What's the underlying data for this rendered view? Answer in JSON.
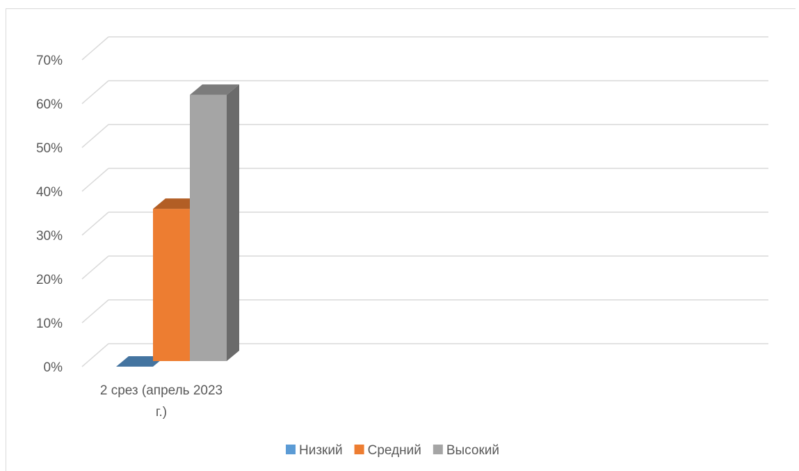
{
  "chart_data": {
    "type": "bar",
    "categories": [
      "2 срез (апрель 2023 г.)"
    ],
    "series": [
      {
        "name": "Низкий",
        "values": [
          0
        ],
        "color": "#5B9BD5"
      },
      {
        "name": "Средний",
        "values": [
          0.36
        ],
        "color": "#ED7D31"
      },
      {
        "name": "Высокий",
        "values": [
          0.62
        ],
        "color": "#A5A5A5"
      }
    ],
    "ylim": [
      0,
      0.7
    ],
    "yticks": [
      "0%",
      "10%",
      "20%",
      "30%",
      "40%",
      "50%",
      "60%",
      "70%"
    ],
    "grid": true,
    "legend_position": "bottom",
    "style": "3d-column"
  }
}
